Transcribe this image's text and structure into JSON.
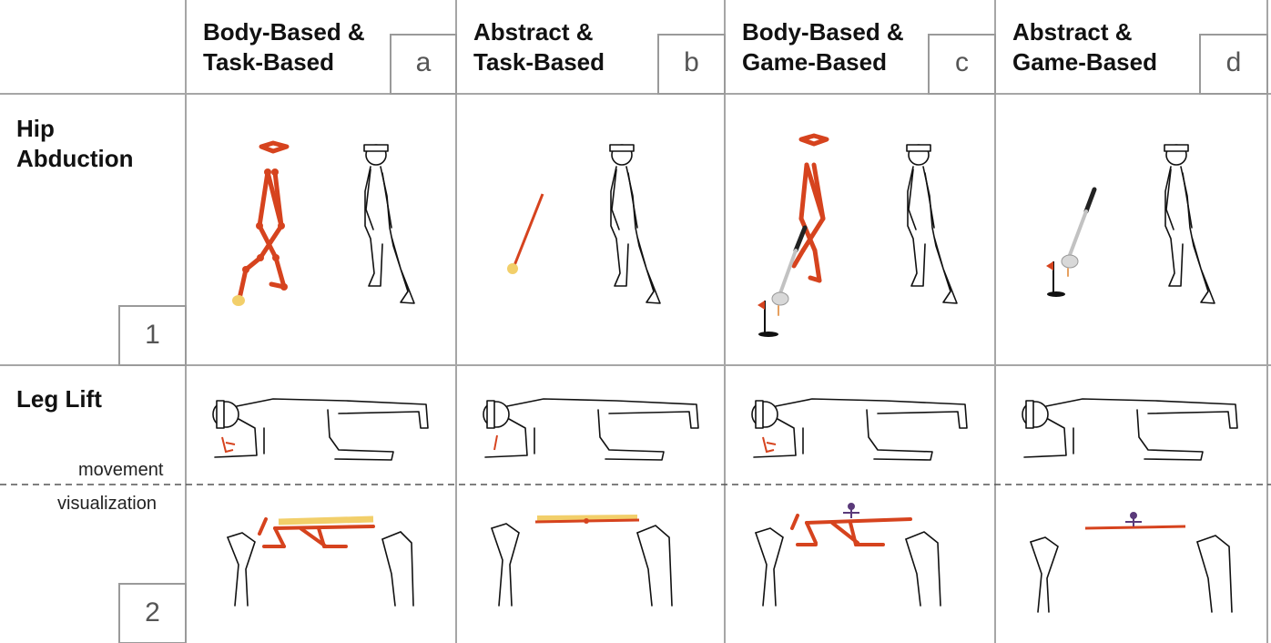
{
  "columns": [
    {
      "line1": "Body-Based &",
      "line2": "Task-Based",
      "tag": "a"
    },
    {
      "line1": "Abstract &",
      "line2": "Task-Based",
      "tag": "b"
    },
    {
      "line1": "Body-Based &",
      "line2": "Game-Based",
      "tag": "c"
    },
    {
      "line1": "Abstract &",
      "line2": "Game-Based",
      "tag": "d"
    }
  ],
  "rows": [
    {
      "line1": "Hip",
      "line2": "Abduction",
      "tag": "1"
    },
    {
      "line1": "Leg Lift",
      "tag": "2",
      "sub_top": "movement",
      "sub_bottom": "visualization"
    }
  ],
  "colors": {
    "skeleton": "#d6431e",
    "foot_marker": "#f2cf6a",
    "grid_line": "#a6a6a6",
    "tag_border": "#9a9a9a"
  }
}
